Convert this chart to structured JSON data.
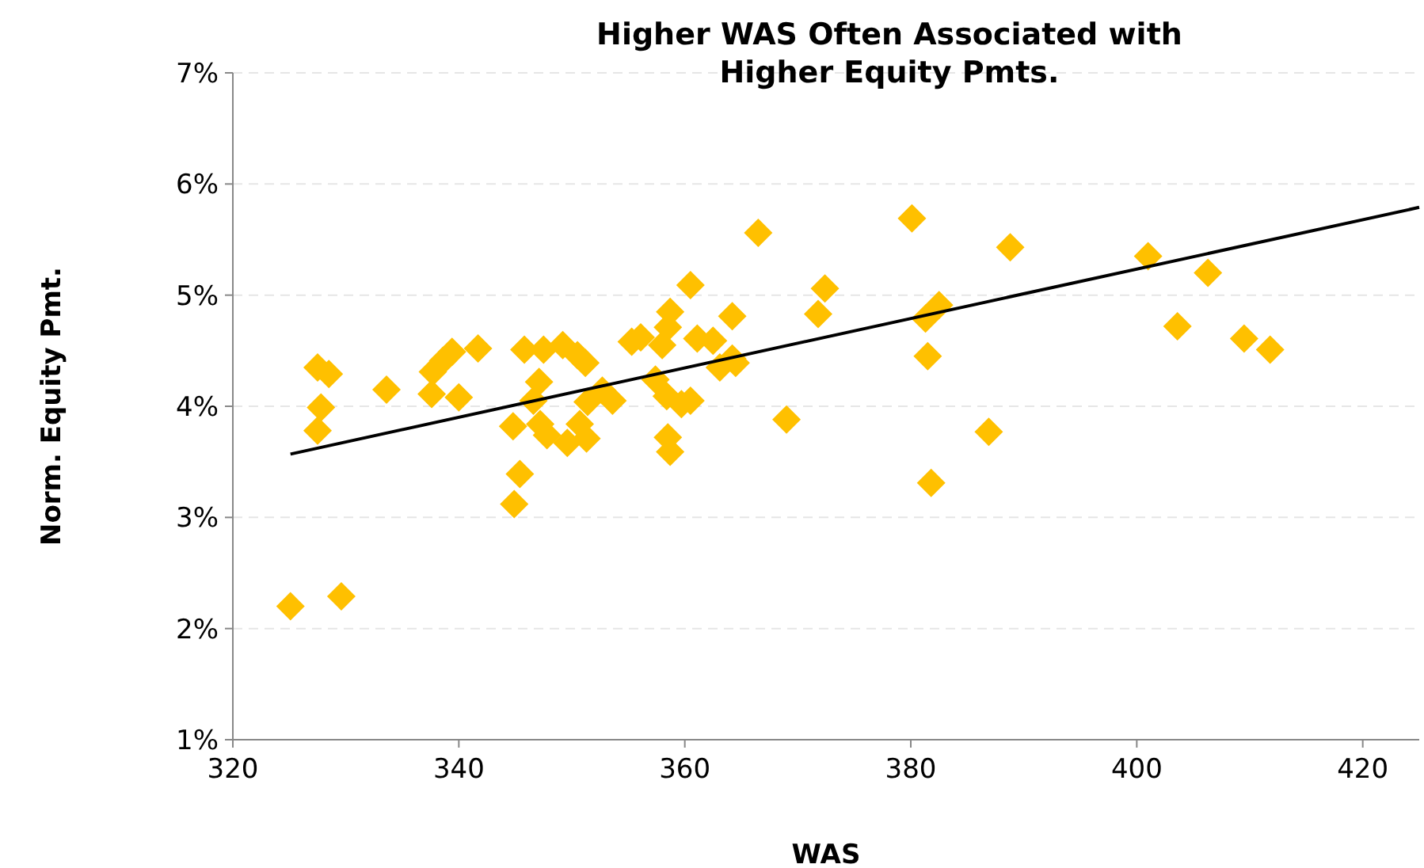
{
  "chart_data": {
    "type": "scatter",
    "title": "Higher WAS Often Associated with Higher Equity Pmts.",
    "xlabel": "WAS",
    "ylabel": "Norm. Equity Pmt.",
    "xlim": [
      320,
      425
    ],
    "xticks": [
      320,
      340,
      360,
      380,
      400,
      420
    ],
    "ylim": [
      1,
      7
    ],
    "yticks": [
      {
        "value": 1,
        "label": "1%"
      },
      {
        "value": 2,
        "label": "2%"
      },
      {
        "value": 3,
        "label": "3%"
      },
      {
        "value": 4,
        "label": "4%"
      },
      {
        "value": 5,
        "label": "5%"
      },
      {
        "value": 6,
        "label": "6%"
      },
      {
        "value": 7,
        "label": "7%"
      }
    ],
    "grid": "y",
    "series": [
      {
        "color": "#ffc000",
        "marker": "diamond",
        "x": [
          325.1,
          329.6,
          327.5,
          328.5,
          327.8,
          327.5,
          333.6,
          337.6,
          337.7,
          338.6,
          339.4,
          340.0,
          341.7,
          345.8,
          344.8,
          345.4,
          344.9,
          346.6,
          347.1,
          347.5,
          347.2,
          347.8,
          349.2,
          349.6,
          350.5,
          351.3,
          350.7,
          351.2,
          351.4,
          352.7,
          353.6,
          355.3,
          356.1,
          357.4,
          358.0,
          358.5,
          358.7,
          358.4,
          358.7,
          358.5,
          359.7,
          360.5,
          360.5,
          361.1,
          362.5,
          363.1,
          364.2,
          364.5,
          364.2,
          366.5,
          369.0,
          371.8,
          372.4,
          380.1,
          381.3,
          382.5,
          381.5,
          381.8,
          386.9,
          388.8,
          401.0,
          403.6,
          406.3,
          409.5,
          411.8
        ],
        "values": [
          2.2,
          2.29,
          4.35,
          4.29,
          3.99,
          3.78,
          4.15,
          4.11,
          4.31,
          4.41,
          4.49,
          4.08,
          4.52,
          4.51,
          3.82,
          3.39,
          3.12,
          4.05,
          4.22,
          4.51,
          3.84,
          3.74,
          4.55,
          3.67,
          4.46,
          3.71,
          3.84,
          4.39,
          4.04,
          4.14,
          4.05,
          4.58,
          4.62,
          4.24,
          4.55,
          4.71,
          4.85,
          4.09,
          3.59,
          3.72,
          4.02,
          5.09,
          4.05,
          4.61,
          4.59,
          4.35,
          4.43,
          4.39,
          4.81,
          5.56,
          3.88,
          4.83,
          5.06,
          5.69,
          4.79,
          4.91,
          4.45,
          3.31,
          3.77,
          5.43,
          5.35,
          4.72,
          5.2,
          4.61,
          4.51
        ]
      },
      {
        "type": "line",
        "color": "#000000",
        "line_style": "solid",
        "x": [
          325.1,
          425
        ],
        "values": [
          3.57,
          5.79
        ]
      }
    ]
  }
}
